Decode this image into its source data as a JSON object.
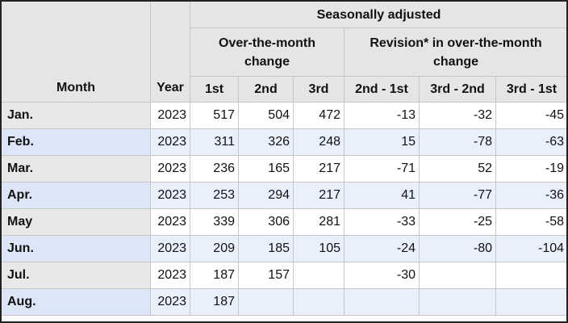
{
  "header": {
    "month_label": "Month",
    "year_label": "Year",
    "seasonally_adjusted": "Seasonally adjusted",
    "over_the_month_line1": "Over-the-month",
    "over_the_month_line2": "change",
    "revision_line1": "Revision* in over-the-month",
    "revision_line2": "change",
    "col_1st": "1st",
    "col_2nd": "2nd",
    "col_3rd": "3rd",
    "col_2nd_1st": "2nd - 1st",
    "col_3rd_2nd": "3rd - 2nd",
    "col_3rd_1st": "3rd - 1st"
  },
  "rows": [
    {
      "month": "Jan.",
      "year": "2023",
      "first": "517",
      "second": "504",
      "third": "472",
      "rev21": "-13",
      "rev32": "-32",
      "rev31": "-45"
    },
    {
      "month": "Feb.",
      "year": "2023",
      "first": "311",
      "second": "326",
      "third": "248",
      "rev21": "15",
      "rev32": "-78",
      "rev31": "-63"
    },
    {
      "month": "Mar.",
      "year": "2023",
      "first": "236",
      "second": "165",
      "third": "217",
      "rev21": "-71",
      "rev32": "52",
      "rev31": "-19"
    },
    {
      "month": "Apr.",
      "year": "2023",
      "first": "253",
      "second": "294",
      "third": "217",
      "rev21": "41",
      "rev32": "-77",
      "rev31": "-36"
    },
    {
      "month": "May",
      "year": "2023",
      "first": "339",
      "second": "306",
      "third": "281",
      "rev21": "-33",
      "rev32": "-25",
      "rev31": "-58"
    },
    {
      "month": "Jun.",
      "year": "2023",
      "first": "209",
      "second": "185",
      "third": "105",
      "rev21": "-24",
      "rev32": "-80",
      "rev31": "-104"
    },
    {
      "month": "Jul.",
      "year": "2023",
      "first": "187",
      "second": "157",
      "third": "",
      "rev21": "-30",
      "rev32": "",
      "rev31": ""
    },
    {
      "month": "Aug.",
      "year": "2023",
      "first": "187",
      "second": "",
      "third": "",
      "rev21": "",
      "rev32": "",
      "rev31": ""
    }
  ],
  "colors": {
    "header_bg": "#e5e5e5",
    "row_alt_bg": "#e9f0fc",
    "month_cell_bg": "#e8e8e8",
    "border": "#c6c6c6"
  }
}
